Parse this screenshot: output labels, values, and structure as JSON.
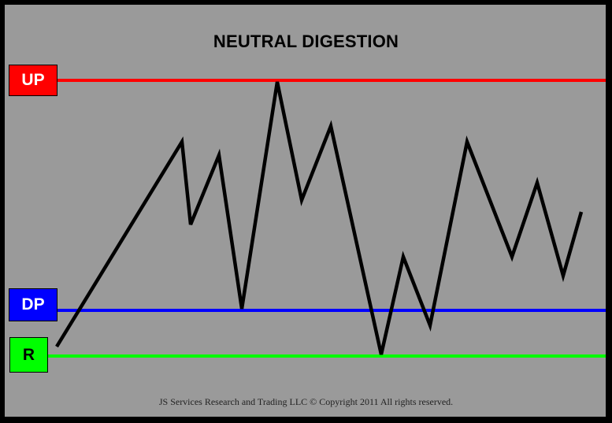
{
  "title": "NEUTRAL DIGESTION",
  "labels": {
    "up": "UP",
    "dp": "DP",
    "r": "R"
  },
  "colors": {
    "up": "#ff0000",
    "dp": "#0000ff",
    "r": "#00ff00",
    "background": "#9a9a9a",
    "frame": "#000000",
    "path": "#000000"
  },
  "footer": "JS Services Research and Trading LLC © Copyright 2011 All rights reserved."
}
